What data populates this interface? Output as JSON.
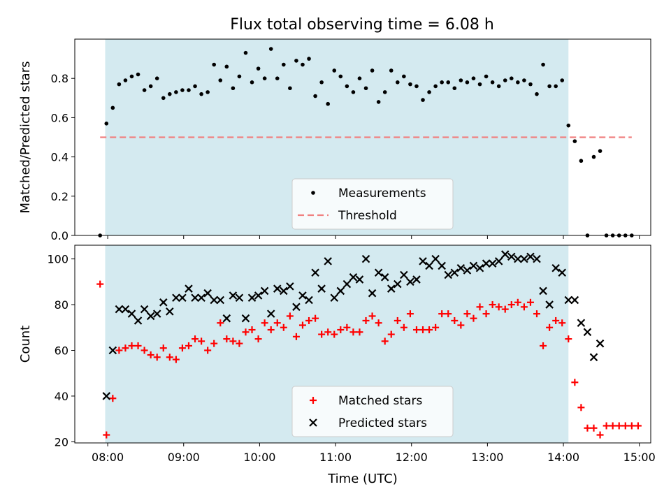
{
  "figure": {
    "title": "Flux total observing time = 6.08 h"
  },
  "chart_data": [
    {
      "type": "scatter",
      "ylabel": "Matched/Predicted stars",
      "xlabel": "",
      "xlim": [
        "07:34",
        "15:09"
      ],
      "ylim": [
        0,
        1.0
      ],
      "yticks": [
        0.0,
        0.2,
        0.4,
        0.6,
        0.8
      ],
      "ytick_labels": [
        "0.0",
        "0.2",
        "0.4",
        "0.6",
        "0.8"
      ],
      "shaded_span": [
        "07:58",
        "14:04"
      ],
      "shade_color": "#d4eaf0",
      "grid": false,
      "legend_position": "lower center",
      "series": [
        {
          "name": "Measurements",
          "marker": "dot",
          "color": "#000000",
          "points": [
            [
              "07:54",
              0.0
            ],
            [
              "07:59",
              0.57
            ],
            [
              "08:04",
              0.65
            ],
            [
              "08:09",
              0.77
            ],
            [
              "08:14",
              0.79
            ],
            [
              "08:19",
              0.81
            ],
            [
              "08:24",
              0.82
            ],
            [
              "08:29",
              0.74
            ],
            [
              "08:34",
              0.76
            ],
            [
              "08:39",
              0.8
            ],
            [
              "08:44",
              0.7
            ],
            [
              "08:49",
              0.72
            ],
            [
              "08:54",
              0.73
            ],
            [
              "08:59",
              0.74
            ],
            [
              "09:04",
              0.74
            ],
            [
              "09:09",
              0.76
            ],
            [
              "09:14",
              0.72
            ],
            [
              "09:19",
              0.73
            ],
            [
              "09:24",
              0.87
            ],
            [
              "09:29",
              0.79
            ],
            [
              "09:34",
              0.86
            ],
            [
              "09:39",
              0.75
            ],
            [
              "09:44",
              0.81
            ],
            [
              "09:49",
              0.93
            ],
            [
              "09:54",
              0.78
            ],
            [
              "09:59",
              0.85
            ],
            [
              "10:04",
              0.8
            ],
            [
              "10:09",
              0.95
            ],
            [
              "10:14",
              0.8
            ],
            [
              "10:19",
              0.87
            ],
            [
              "10:24",
              0.75
            ],
            [
              "10:29",
              0.89
            ],
            [
              "10:34",
              0.87
            ],
            [
              "10:39",
              0.9
            ],
            [
              "10:44",
              0.71
            ],
            [
              "10:49",
              0.78
            ],
            [
              "10:54",
              0.67
            ],
            [
              "10:59",
              0.84
            ],
            [
              "11:04",
              0.81
            ],
            [
              "11:09",
              0.76
            ],
            [
              "11:14",
              0.73
            ],
            [
              "11:19",
              0.8
            ],
            [
              "11:24",
              0.75
            ],
            [
              "11:29",
              0.84
            ],
            [
              "11:34",
              0.68
            ],
            [
              "11:39",
              0.73
            ],
            [
              "11:44",
              0.84
            ],
            [
              "11:49",
              0.78
            ],
            [
              "11:54",
              0.81
            ],
            [
              "11:59",
              0.77
            ],
            [
              "12:04",
              0.76
            ],
            [
              "12:09",
              0.69
            ],
            [
              "12:14",
              0.73
            ],
            [
              "12:19",
              0.76
            ],
            [
              "12:24",
              0.78
            ],
            [
              "12:29",
              0.78
            ],
            [
              "12:34",
              0.75
            ],
            [
              "12:39",
              0.79
            ],
            [
              "12:44",
              0.78
            ],
            [
              "12:49",
              0.8
            ],
            [
              "12:54",
              0.77
            ],
            [
              "12:59",
              0.81
            ],
            [
              "13:04",
              0.78
            ],
            [
              "13:09",
              0.76
            ],
            [
              "13:14",
              0.79
            ],
            [
              "13:19",
              0.8
            ],
            [
              "13:24",
              0.78
            ],
            [
              "13:29",
              0.79
            ],
            [
              "13:34",
              0.77
            ],
            [
              "13:39",
              0.72
            ],
            [
              "13:44",
              0.87
            ],
            [
              "13:49",
              0.76
            ],
            [
              "13:54",
              0.76
            ],
            [
              "13:59",
              0.79
            ],
            [
              "14:04",
              0.56
            ],
            [
              "14:09",
              0.48
            ],
            [
              "14:14",
              0.38
            ],
            [
              "14:19",
              0.0
            ],
            [
              "14:24",
              0.4
            ],
            [
              "14:29",
              0.43
            ],
            [
              "14:34",
              0.0
            ],
            [
              "14:39",
              0.0
            ],
            [
              "14:44",
              0.0
            ],
            [
              "14:49",
              0.0
            ],
            [
              "14:54",
              0.0
            ]
          ]
        },
        {
          "name": "Threshold",
          "marker": "dashed-line",
          "color": "#f08080",
          "points": [
            [
              "07:54",
              0.5
            ],
            [
              "14:54",
              0.5
            ]
          ]
        }
      ]
    },
    {
      "type": "scatter",
      "ylabel": "Count",
      "xlabel": "Time (UTC)",
      "xlim": [
        "07:34",
        "15:09"
      ],
      "ylim": [
        19.5,
        106
      ],
      "yticks": [
        20,
        40,
        60,
        80,
        100
      ],
      "ytick_labels": [
        "20",
        "40",
        "60",
        "80",
        "100"
      ],
      "xticks": [
        "08:00",
        "09:00",
        "10:00",
        "11:00",
        "12:00",
        "13:00",
        "14:00",
        "15:00"
      ],
      "shaded_span": [
        "07:58",
        "14:04"
      ],
      "shade_color": "#d4eaf0",
      "grid": false,
      "legend_position": "lower center",
      "series": [
        {
          "name": "Matched stars",
          "marker": "plus",
          "color": "#ff0000",
          "points": [
            [
              "07:54",
              89
            ],
            [
              "07:59",
              23
            ],
            [
              "08:04",
              39
            ],
            [
              "08:09",
              60
            ],
            [
              "08:14",
              61
            ],
            [
              "08:19",
              62
            ],
            [
              "08:24",
              62
            ],
            [
              "08:29",
              60
            ],
            [
              "08:34",
              58
            ],
            [
              "08:39",
              57
            ],
            [
              "08:44",
              61
            ],
            [
              "08:49",
              57
            ],
            [
              "08:54",
              56
            ],
            [
              "08:59",
              61
            ],
            [
              "09:04",
              62
            ],
            [
              "09:09",
              65
            ],
            [
              "09:14",
              64
            ],
            [
              "09:19",
              60
            ],
            [
              "09:24",
              63
            ],
            [
              "09:29",
              72
            ],
            [
              "09:34",
              65
            ],
            [
              "09:39",
              64
            ],
            [
              "09:44",
              63
            ],
            [
              "09:49",
              68
            ],
            [
              "09:54",
              69
            ],
            [
              "09:59",
              65
            ],
            [
              "10:04",
              72
            ],
            [
              "10:09",
              69
            ],
            [
              "10:14",
              72
            ],
            [
              "10:19",
              70
            ],
            [
              "10:24",
              75
            ],
            [
              "10:29",
              66
            ],
            [
              "10:34",
              71
            ],
            [
              "10:39",
              73
            ],
            [
              "10:44",
              74
            ],
            [
              "10:49",
              67
            ],
            [
              "10:54",
              68
            ],
            [
              "10:59",
              67
            ],
            [
              "11:04",
              69
            ],
            [
              "11:09",
              70
            ],
            [
              "11:14",
              68
            ],
            [
              "11:19",
              68
            ],
            [
              "11:24",
              73
            ],
            [
              "11:29",
              75
            ],
            [
              "11:34",
              72
            ],
            [
              "11:39",
              64
            ],
            [
              "11:44",
              67
            ],
            [
              "11:49",
              73
            ],
            [
              "11:54",
              70
            ],
            [
              "11:59",
              76
            ],
            [
              "12:04",
              69
            ],
            [
              "12:09",
              69
            ],
            [
              "12:14",
              69
            ],
            [
              "12:19",
              70
            ],
            [
              "12:24",
              76
            ],
            [
              "12:29",
              76
            ],
            [
              "12:34",
              73
            ],
            [
              "12:39",
              71
            ],
            [
              "12:44",
              76
            ],
            [
              "12:49",
              74
            ],
            [
              "12:54",
              79
            ],
            [
              "12:59",
              76
            ],
            [
              "13:04",
              80
            ],
            [
              "13:09",
              79
            ],
            [
              "13:14",
              78
            ],
            [
              "13:19",
              80
            ],
            [
              "13:24",
              81
            ],
            [
              "13:29",
              79
            ],
            [
              "13:34",
              81
            ],
            [
              "13:39",
              76
            ],
            [
              "13:44",
              62
            ],
            [
              "13:49",
              70
            ],
            [
              "13:54",
              73
            ],
            [
              "13:59",
              72
            ],
            [
              "14:04",
              65
            ],
            [
              "14:09",
              46
            ],
            [
              "14:14",
              35
            ],
            [
              "14:19",
              26
            ],
            [
              "14:24",
              26
            ],
            [
              "14:29",
              23
            ],
            [
              "14:34",
              27
            ],
            [
              "14:39",
              27
            ],
            [
              "14:44",
              27
            ],
            [
              "14:49",
              27
            ],
            [
              "14:54",
              27
            ],
            [
              "14:59",
              27
            ]
          ]
        },
        {
          "name": "Predicted stars",
          "marker": "x",
          "color": "#000000",
          "points": [
            [
              "07:59",
              40
            ],
            [
              "08:04",
              60
            ],
            [
              "08:09",
              78
            ],
            [
              "08:14",
              78
            ],
            [
              "08:19",
              76
            ],
            [
              "08:24",
              73
            ],
            [
              "08:29",
              78
            ],
            [
              "08:34",
              75
            ],
            [
              "08:39",
              76
            ],
            [
              "08:44",
              81
            ],
            [
              "08:49",
              77
            ],
            [
              "08:54",
              83
            ],
            [
              "08:59",
              83
            ],
            [
              "09:04",
              87
            ],
            [
              "09:09",
              83
            ],
            [
              "09:14",
              83
            ],
            [
              "09:19",
              85
            ],
            [
              "09:24",
              82
            ],
            [
              "09:29",
              82
            ],
            [
              "09:34",
              74
            ],
            [
              "09:39",
              84
            ],
            [
              "09:44",
              83
            ],
            [
              "09:49",
              74
            ],
            [
              "09:54",
              83
            ],
            [
              "09:59",
              84
            ],
            [
              "10:04",
              86
            ],
            [
              "10:09",
              76
            ],
            [
              "10:14",
              87
            ],
            [
              "10:19",
              86
            ],
            [
              "10:24",
              88
            ],
            [
              "10:29",
              79
            ],
            [
              "10:34",
              84
            ],
            [
              "10:39",
              82
            ],
            [
              "10:44",
              94
            ],
            [
              "10:49",
              87
            ],
            [
              "10:54",
              99
            ],
            [
              "10:59",
              83
            ],
            [
              "11:04",
              86
            ],
            [
              "11:09",
              89
            ],
            [
              "11:14",
              92
            ],
            [
              "11:19",
              91
            ],
            [
              "11:24",
              100
            ],
            [
              "11:29",
              85
            ],
            [
              "11:34",
              94
            ],
            [
              "11:39",
              92
            ],
            [
              "11:44",
              87
            ],
            [
              "11:49",
              89
            ],
            [
              "11:54",
              93
            ],
            [
              "11:59",
              90
            ],
            [
              "12:04",
              91
            ],
            [
              "12:09",
              99
            ],
            [
              "12:14",
              97
            ],
            [
              "12:19",
              100
            ],
            [
              "12:24",
              97
            ],
            [
              "12:29",
              93
            ],
            [
              "12:34",
              94
            ],
            [
              "12:39",
              96
            ],
            [
              "12:44",
              95
            ],
            [
              "12:49",
              97
            ],
            [
              "12:54",
              96
            ],
            [
              "12:59",
              98
            ],
            [
              "13:04",
              98
            ],
            [
              "13:09",
              99
            ],
            [
              "13:14",
              102
            ],
            [
              "13:19",
              101
            ],
            [
              "13:24",
              100
            ],
            [
              "13:29",
              100
            ],
            [
              "13:34",
              101
            ],
            [
              "13:39",
              100
            ],
            [
              "13:44",
              86
            ],
            [
              "13:49",
              80
            ],
            [
              "13:54",
              96
            ],
            [
              "13:59",
              94
            ],
            [
              "14:04",
              82
            ],
            [
              "14:09",
              82
            ],
            [
              "14:14",
              72
            ],
            [
              "14:19",
              68
            ],
            [
              "14:24",
              57
            ],
            [
              "14:29",
              63
            ]
          ]
        }
      ]
    }
  ]
}
